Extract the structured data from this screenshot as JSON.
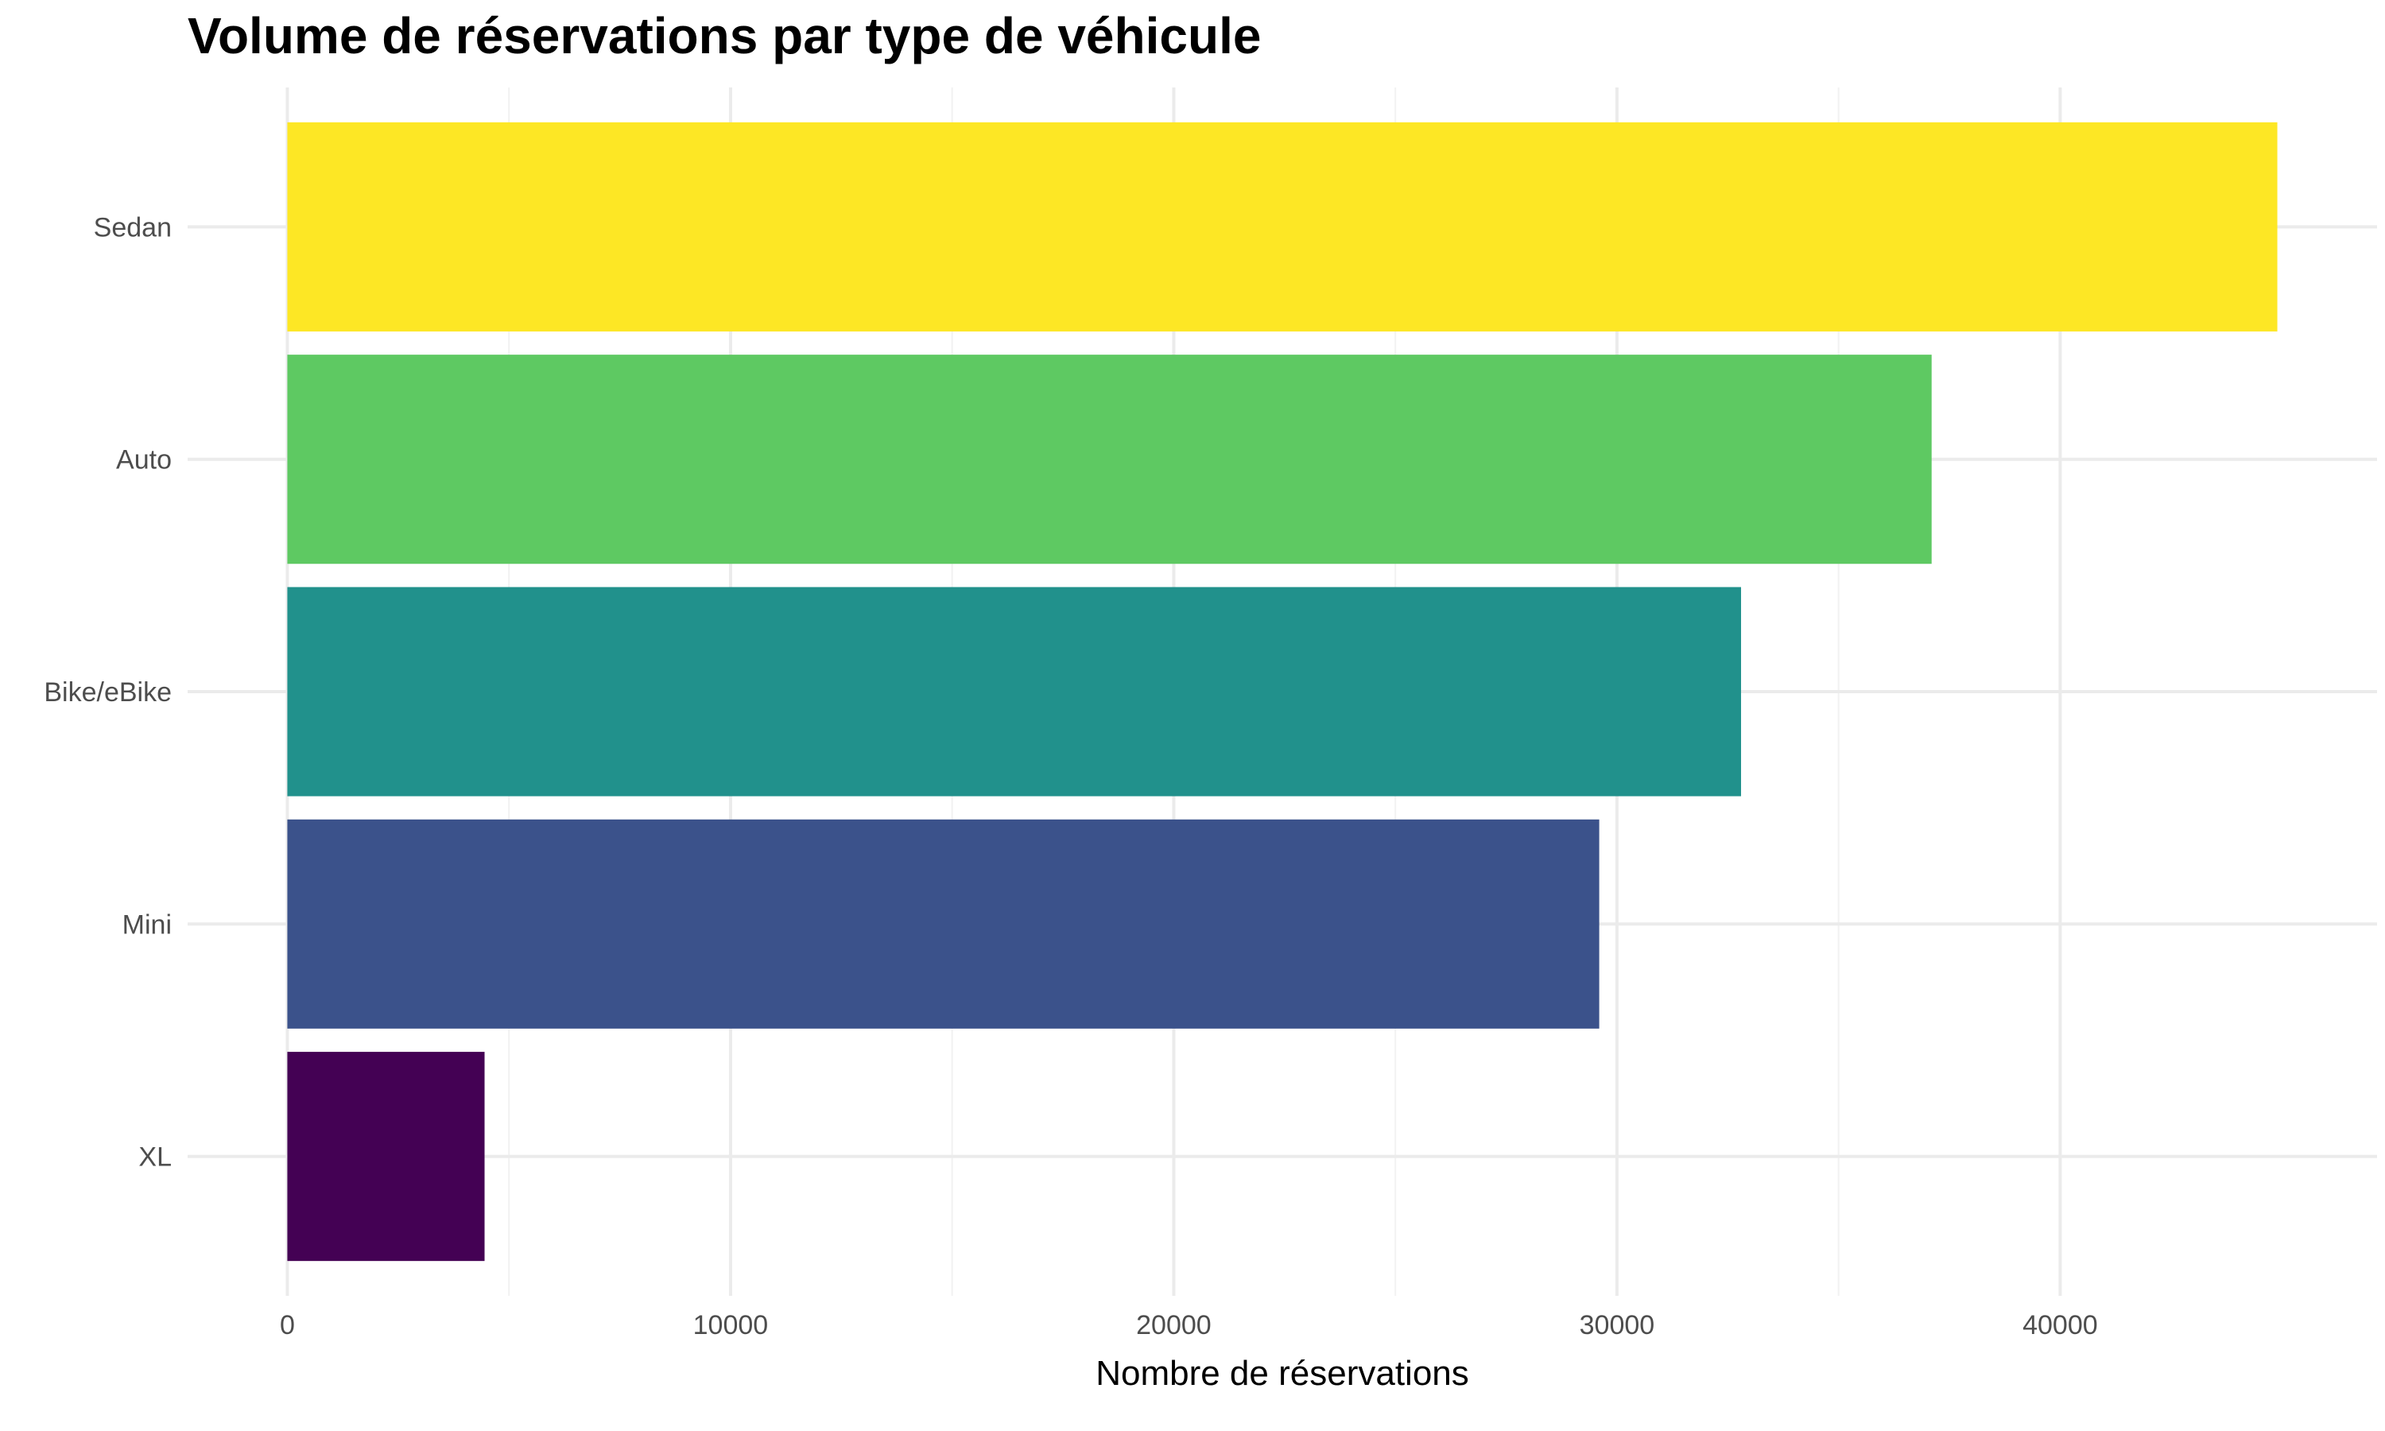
{
  "chart_data": {
    "type": "bar",
    "orientation": "horizontal",
    "title": "Volume de réservations par type de véhicule",
    "xlabel": "Nombre de réservations",
    "ylabel": "",
    "categories": [
      "Sedan",
      "Auto",
      "Bike/eBike",
      "Mini",
      "XL"
    ],
    "values": [
      44900,
      37100,
      32800,
      29600,
      4450
    ],
    "colors": [
      "#fde725",
      "#5ec962",
      "#21918c",
      "#3b528b",
      "#440154"
    ],
    "xticks": [
      0,
      10000,
      20000,
      30000,
      40000
    ],
    "xtick_labels": [
      "0",
      "10000",
      "20000",
      "30000",
      "40000"
    ],
    "xlim": [
      -2250,
      47150
    ],
    "grid": true,
    "legend": "none"
  }
}
